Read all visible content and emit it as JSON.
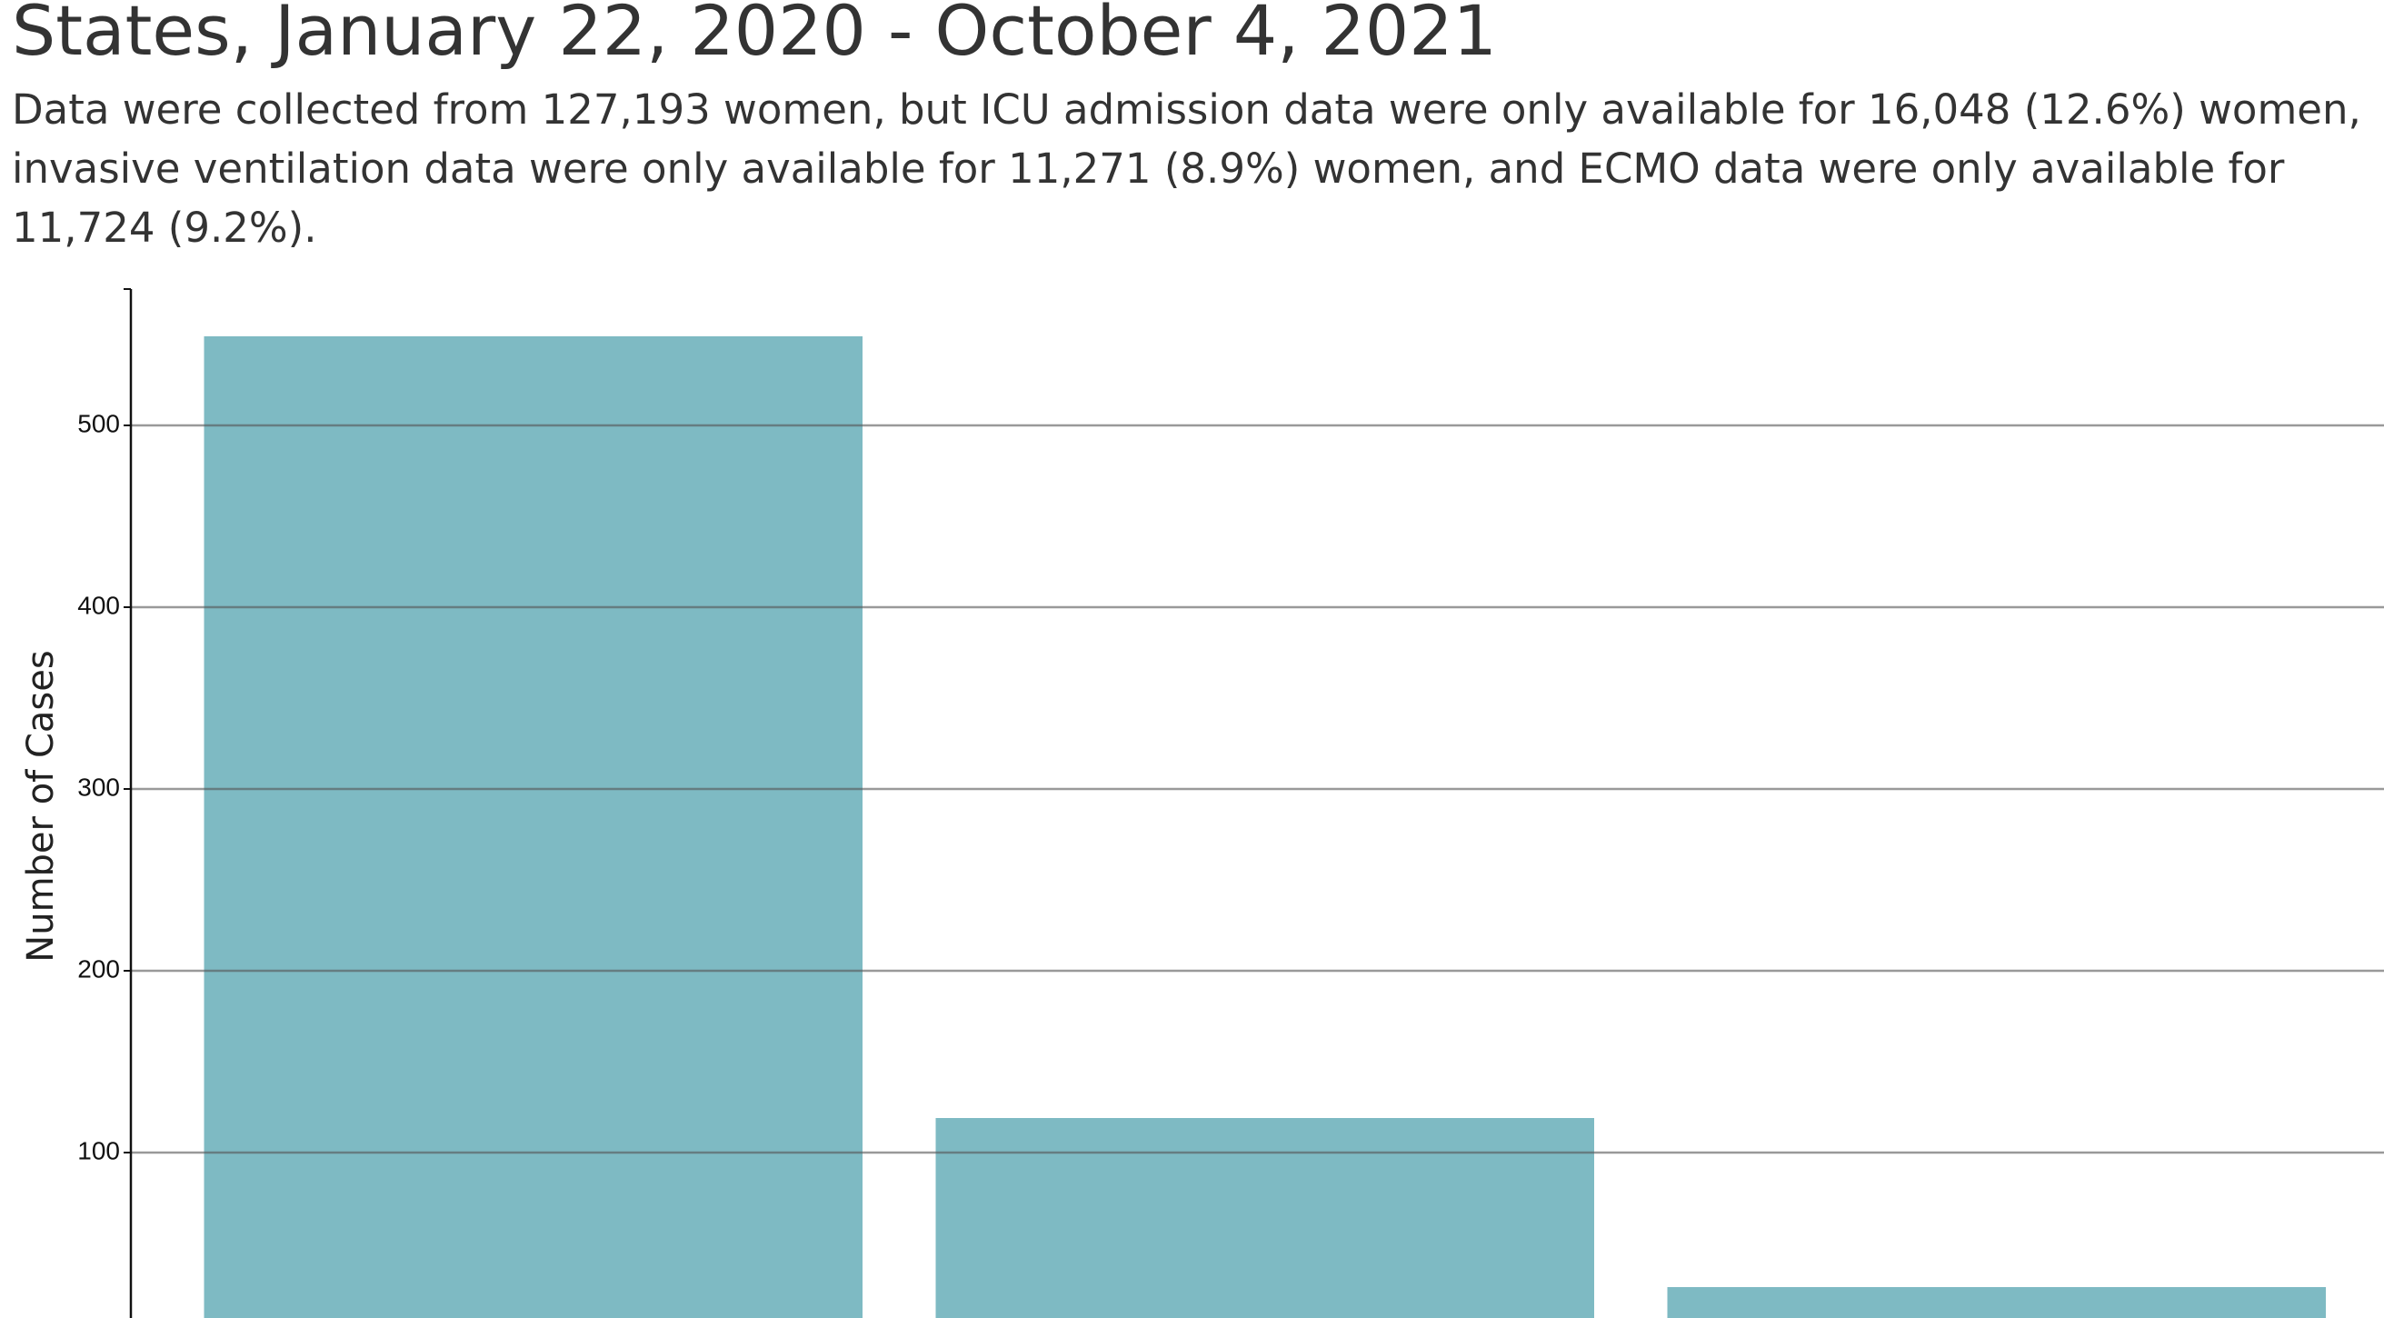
{
  "chart_data": {
    "type": "bar",
    "title": "States, January 22, 2020 - October 4, 2021",
    "subtitle": "Data were collected from 127,193 women, but ICU admission data were only available for 16,048 (12.6%) women, invasive ventilation data were only available for 11,271 (8.9%) women, and ECMO data were only available for 11,724 (9.2%).",
    "y_label": "Number of Cases",
    "categories": [
      null,
      null,
      null
    ],
    "values": [
      549,
      119,
      26
    ],
    "color": "#7ebac3",
    "ylim": [
      0,
      575
    ],
    "yticks": [
      100,
      200,
      300,
      400,
      500
    ],
    "grid": true
  }
}
